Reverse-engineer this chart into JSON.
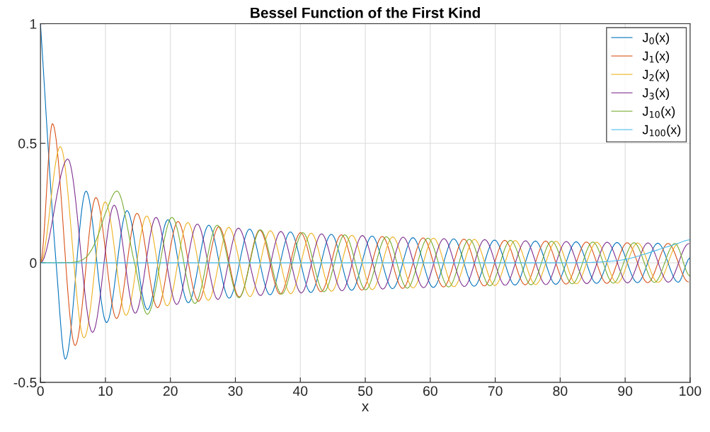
{
  "chart_data": {
    "type": "line",
    "title": "Bessel Function of the First Kind",
    "xlabel": "x",
    "xlim": [
      0,
      100
    ],
    "xticks": [
      0,
      10,
      20,
      30,
      40,
      50,
      60,
      70,
      80,
      90,
      100
    ],
    "ylim": [
      -0.5,
      1
    ],
    "yticks": [
      {
        "value": -0.5,
        "label": "-0.5"
      },
      0,
      0.5,
      1
    ],
    "grid": true,
    "legend": "top right",
    "series": [
      {
        "name": "J$_{0}$(x)",
        "color": "#0072bd",
        "x": [
          0,
          2.405,
          3.832,
          7.016,
          10.173,
          13.324,
          16.471,
          19.616,
          22.76,
          25.904,
          29.047,
          32.19,
          35.33,
          38.47,
          41.62,
          44.76,
          47.9,
          51.04,
          54.19,
          57.33,
          60.47,
          63.61,
          66.75,
          69.9,
          73.04,
          76.18,
          79.32,
          82.46,
          85.6,
          88.75,
          91.89,
          95.03,
          98.17,
          100
        ],
        "values": [
          1,
          0,
          -0.403,
          0.3,
          -0.25,
          0.218,
          -0.196,
          0.18,
          -0.167,
          0.157,
          -0.148,
          0.141,
          -0.134,
          0.129,
          -0.124,
          0.119,
          -0.115,
          0.112,
          -0.108,
          0.105,
          -0.103,
          0.1,
          -0.098,
          0.095,
          -0.093,
          0.091,
          -0.09,
          0.088,
          -0.086,
          0.085,
          -0.083,
          0.082,
          -0.081,
          0.02
        ]
      },
      {
        "name": "J$_{1}$(x)",
        "color": "#d95319",
        "x": [
          0,
          1.841,
          5.331,
          8.536,
          11.706,
          14.864,
          18.016,
          21.164,
          24.311,
          27.457,
          30.602,
          33.75,
          36.89,
          40.04,
          43.18,
          46.32,
          49.47,
          52.61,
          55.75,
          58.9,
          62.04,
          65.18,
          68.32,
          71.47,
          74.61,
          77.75,
          80.9,
          84.04,
          87.18,
          90.32,
          93.47,
          96.61,
          99.75
        ],
        "values": [
          0,
          0.582,
          -0.346,
          0.273,
          -0.233,
          0.207,
          -0.188,
          0.173,
          -0.161,
          0.151,
          -0.143,
          0.137,
          -0.131,
          0.126,
          -0.121,
          0.117,
          -0.114,
          0.11,
          -0.107,
          0.104,
          -0.101,
          0.099,
          -0.097,
          0.094,
          -0.092,
          0.091,
          -0.089,
          0.087,
          -0.086,
          0.084,
          -0.083,
          0.081,
          -0.08
        ]
      },
      {
        "name": "J$_{2}$(x)",
        "color": "#edb120",
        "x": [
          0,
          3.054,
          6.706,
          9.969,
          13.17,
          16.348,
          19.513,
          22.672,
          25.826,
          28.978,
          32.25,
          35.39,
          38.52,
          41.67,
          44.8,
          47.94,
          51.08,
          54.22,
          57.36,
          60.5,
          63.64,
          66.78,
          69.93,
          73.07,
          76.21,
          79.35,
          82.48,
          85.62,
          88.77,
          91.91,
          95.05,
          98.19
        ],
        "values": [
          0,
          0.486,
          -0.314,
          0.255,
          -0.22,
          0.196,
          -0.18,
          0.168,
          -0.157,
          0.148,
          -0.141,
          0.134,
          -0.129,
          0.124,
          -0.119,
          0.115,
          -0.112,
          0.108,
          -0.105,
          0.103,
          -0.1,
          0.098,
          -0.095,
          0.093,
          -0.091,
          0.09,
          -0.088,
          0.086,
          -0.085,
          0.083,
          -0.082,
          0.081
        ]
      },
      {
        "name": "J$_{3}$(x)",
        "color": "#7e2f8e",
        "x": [
          0,
          4.201,
          8.015,
          11.346,
          14.586,
          17.789,
          20.972,
          24.145,
          27.31,
          30.47,
          33.87,
          37.0,
          40.14,
          43.27,
          46.41,
          49.55,
          52.69,
          55.82,
          58.97,
          62.1,
          65.24,
          68.38,
          71.53,
          74.66,
          77.8,
          80.94,
          84.09,
          87.23,
          90.36,
          93.51,
          96.65,
          99.79
        ],
        "values": [
          0,
          0.434,
          -0.291,
          0.241,
          -0.211,
          0.19,
          -0.174,
          0.162,
          -0.153,
          0.145,
          -0.137,
          0.131,
          -0.126,
          0.121,
          -0.117,
          0.114,
          -0.11,
          0.107,
          -0.104,
          0.101,
          -0.099,
          0.097,
          -0.094,
          0.092,
          -0.091,
          0.089,
          -0.087,
          0.086,
          -0.084,
          0.083,
          -0.081,
          0.08
        ]
      },
      {
        "name": "J$_{10}$(x)",
        "color": "#77ac30",
        "x": [
          0,
          5,
          6,
          7,
          8,
          9,
          10,
          11.77,
          14.476,
          16.45,
          20.24,
          23.78,
          27.2,
          30.55,
          33.86,
          37.13,
          40.38,
          43.62,
          46.84,
          50.05,
          53.25,
          56.45,
          59.64,
          62.82,
          66.0,
          69.18,
          72.35,
          75.52,
          78.69,
          81.86,
          85.02,
          88.18,
          91.35,
          94.51,
          97.66,
          100
        ],
        "values": [
          0,
          0.002,
          0.007,
          0.023,
          0.061,
          0.125,
          0.207,
          0.3,
          0,
          -0.215,
          0.19,
          -0.17,
          0.157,
          -0.146,
          0.138,
          -0.131,
          0.126,
          -0.121,
          0.117,
          -0.113,
          0.109,
          -0.106,
          0.103,
          -0.101,
          0.098,
          -0.096,
          0.094,
          -0.092,
          0.09,
          -0.088,
          0.087,
          -0.085,
          0.084,
          -0.082,
          0.081,
          -0.055
        ]
      },
      {
        "name": "J$_{100}$(x)",
        "color": "#4dbeee",
        "x": [
          0,
          80,
          85,
          88,
          90,
          92,
          94,
          96,
          98,
          100
        ],
        "values": [
          0,
          0,
          0.002,
          0.007,
          0.014,
          0.028,
          0.045,
          0.063,
          0.08,
          0.096
        ]
      }
    ]
  }
}
